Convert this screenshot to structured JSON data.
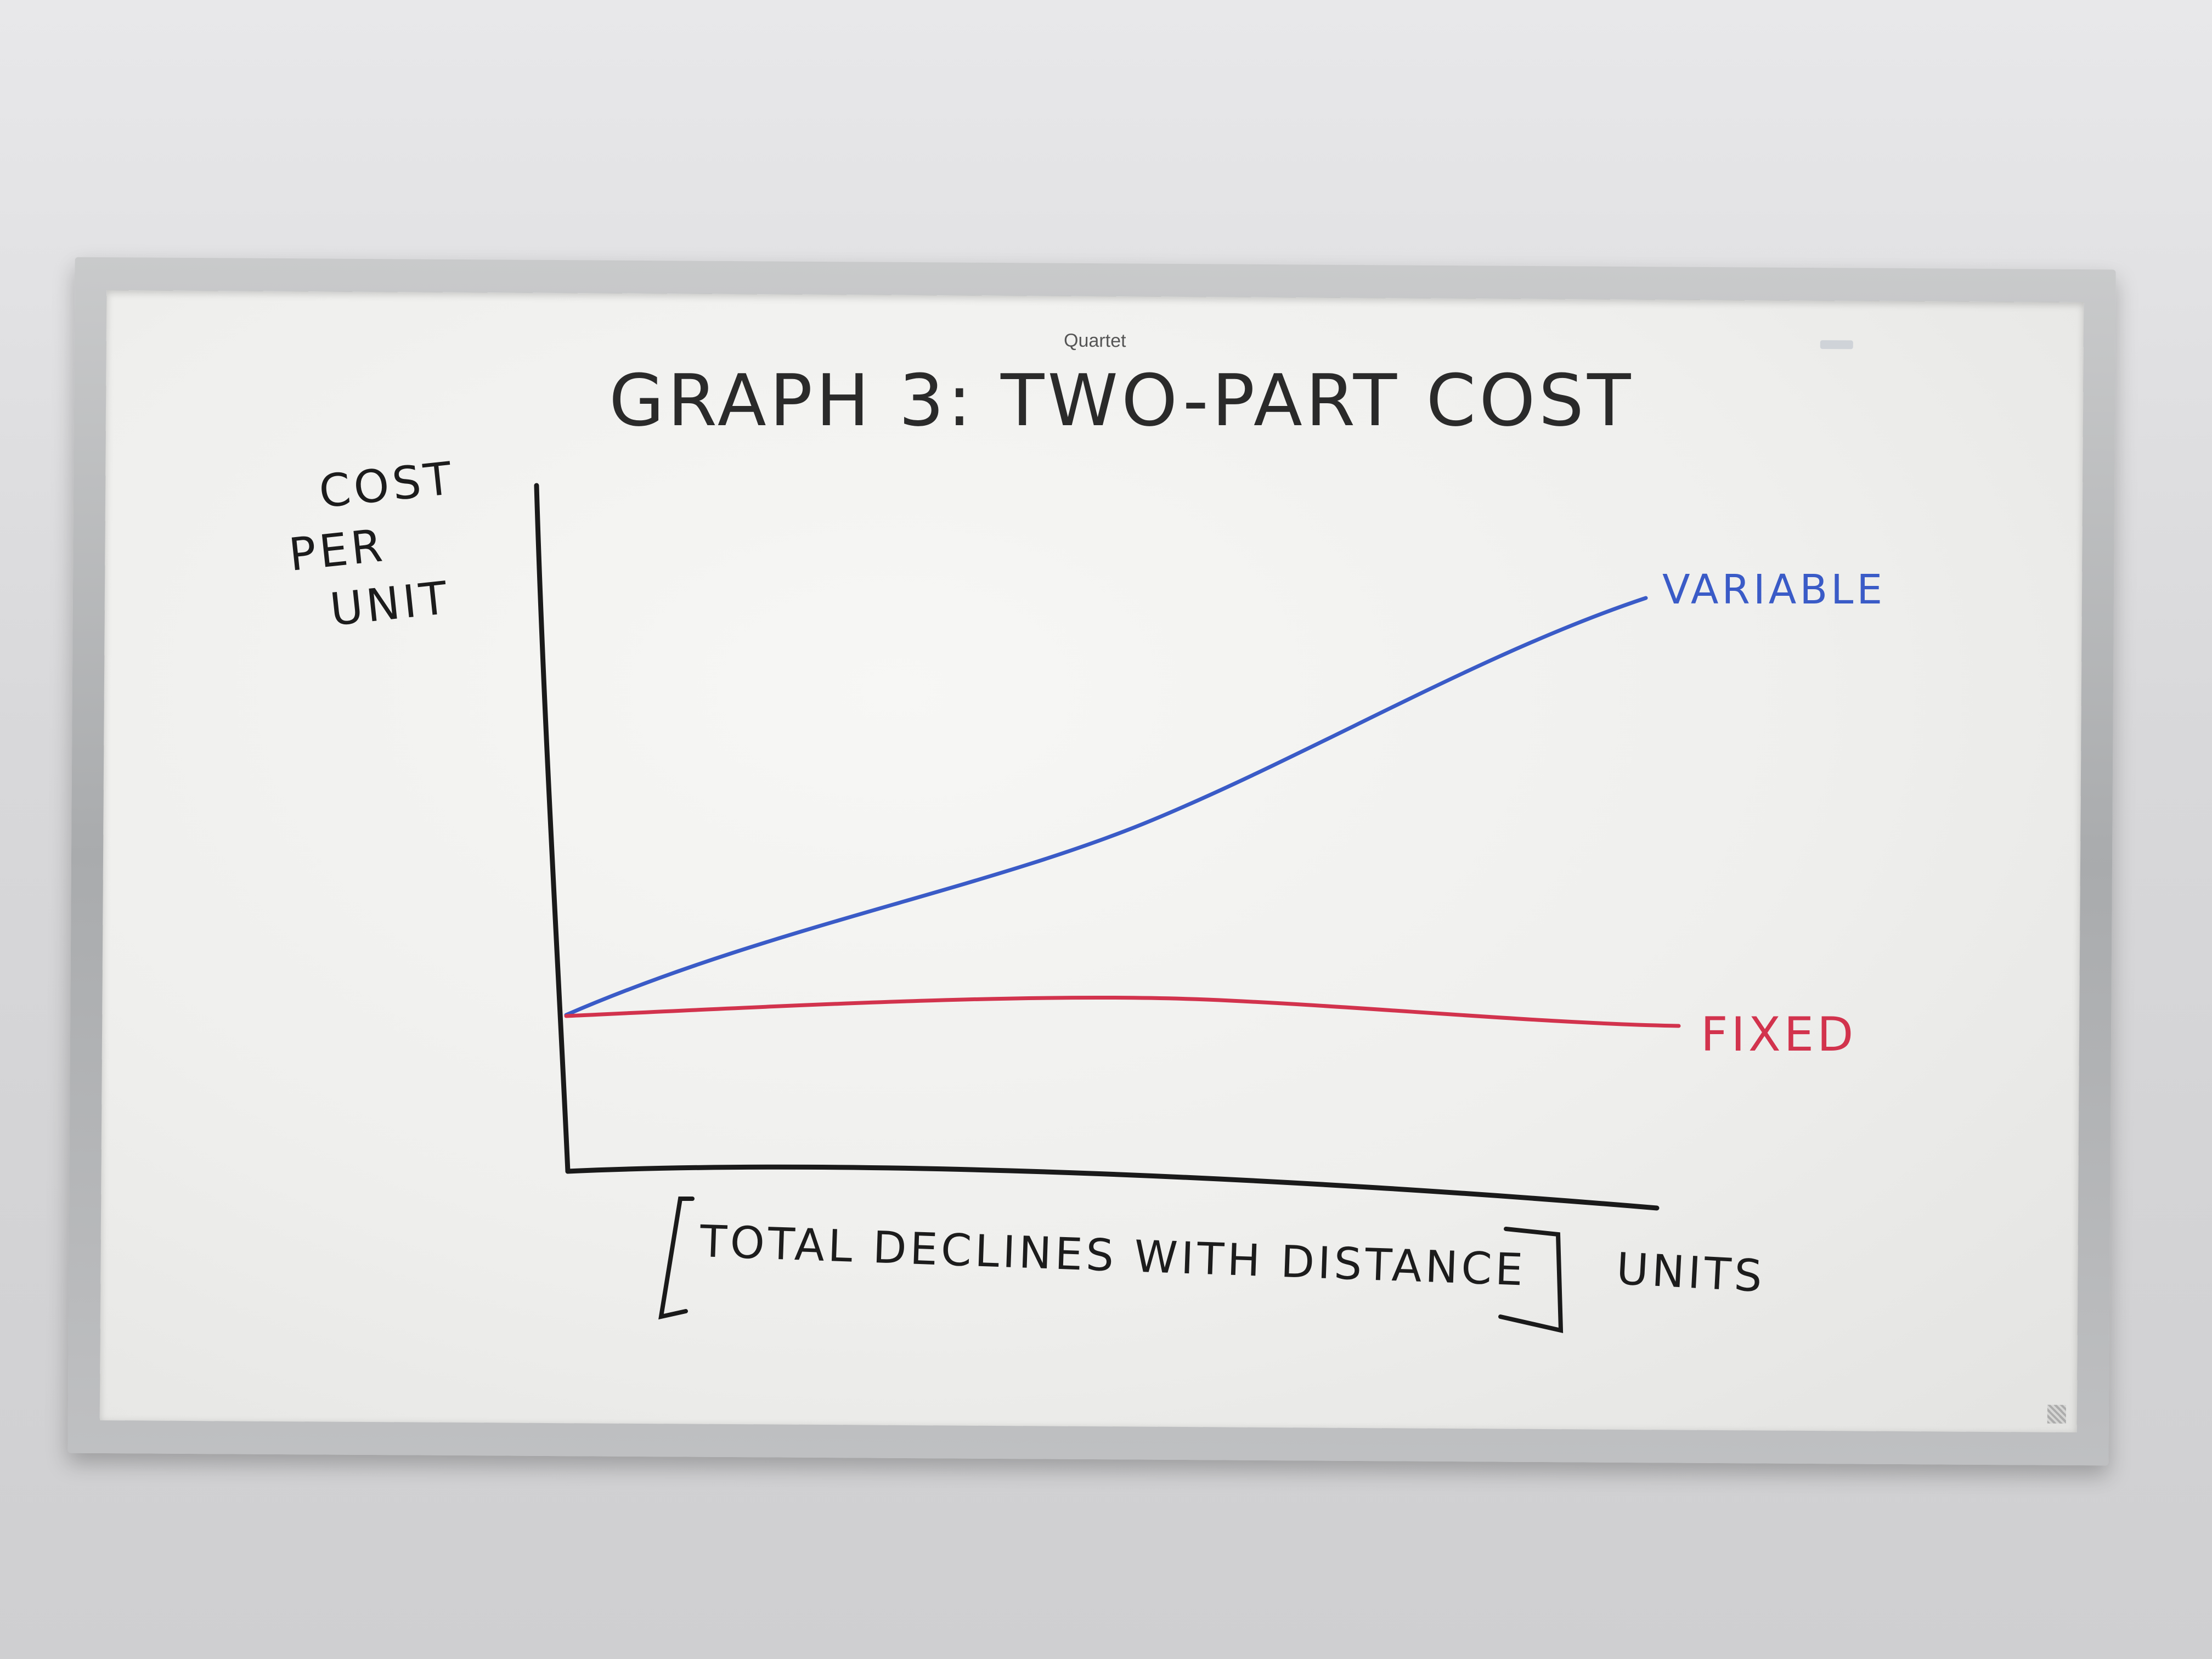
{
  "board": {
    "brand": "Quartet"
  },
  "whiteboard": {
    "title": "GRAPH 3: TWO-PART COST",
    "y_label_lines": [
      "COST",
      "PER",
      "UNIT"
    ],
    "x_label": "UNITS",
    "bracket_note": "TOTAL DECLINES WITH DISTANCE",
    "series_labels": {
      "variable": "VARIABLE",
      "fixed": "FIXED"
    },
    "colors": {
      "axis": "#1a1a1a",
      "variable": "#3a5bc7",
      "fixed": "#d2334d",
      "text": "#1c1c1c"
    }
  }
}
